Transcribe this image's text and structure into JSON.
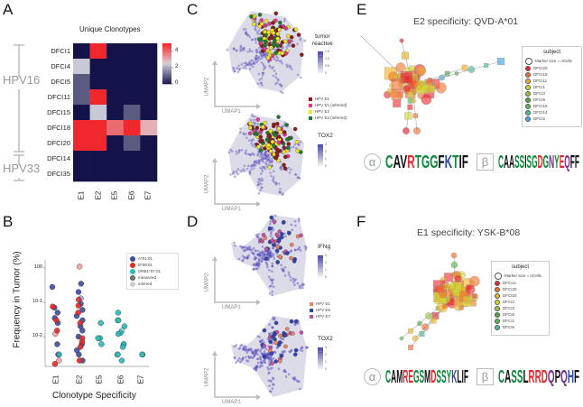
{
  "panels": {
    "A": "A",
    "B": "B",
    "C": "C",
    "D": "D",
    "E": "E",
    "F": "F"
  },
  "colors": {
    "navy": "#13134a",
    "red": "#f0282d",
    "purple": "#5d58b0"
  },
  "chart_data": [
    {
      "type": "heatmap",
      "title": "Unique Clonotypes",
      "rows": [
        "DFCI1",
        "DFCI4",
        "DFCI5",
        "DFCI11",
        "DFCI15",
        "DFCI18",
        "DFCI20",
        "DFCI14",
        "DFCI35"
      ],
      "columns": [
        "E1",
        "E2",
        "E5",
        "E6",
        "E7"
      ],
      "values": [
        [
          0,
          5,
          0,
          0,
          0
        ],
        [
          2.5,
          0,
          0,
          0,
          0
        ],
        [
          1,
          0,
          0,
          0,
          0
        ],
        [
          1,
          5,
          0,
          0,
          0
        ],
        [
          0,
          2.5,
          0,
          1,
          0
        ],
        [
          5,
          5,
          4,
          5,
          3
        ],
        [
          5,
          5,
          0,
          1,
          0
        ],
        [
          0,
          0,
          0,
          0,
          0
        ],
        [
          0,
          0,
          0,
          0,
          0
        ]
      ],
      "colorbar": {
        "range": [
          0,
          5
        ],
        "ticks": [
          "0",
          "2",
          "4"
        ]
      },
      "groups": [
        {
          "label": "HPV16",
          "rows": [
            "DFCI1",
            "DFCI20"
          ]
        },
        {
          "label": "HPV33",
          "rows": [
            "DFCI14",
            "DFCI35"
          ]
        }
      ]
    },
    {
      "type": "scatter",
      "xlabel": "Clonotype Specificity",
      "ylabel": "Frequency in Tumor (%)",
      "categories": [
        "E1",
        "E2",
        "E5",
        "E6",
        "E7"
      ],
      "yscale": "log",
      "ylim": [
        0.0015,
        1.5
      ],
      "yticks": [
        "10^0",
        "10^-1",
        "10^-2"
      ],
      "legend": {
        "placement": "top-right",
        "entries": [
          "A*01:01",
          "B*08:01",
          "DRB1*07:01",
          "measured",
          "inferred"
        ]
      },
      "series": [
        {
          "name": "A*01:01",
          "color": "#3b4aa0",
          "points": [
            [
              "E1",
              0.28
            ],
            [
              "E1",
              0.07
            ],
            [
              "E1",
              0.05
            ],
            [
              "E1",
              0.035
            ],
            [
              "E1",
              0.025
            ],
            [
              "E1",
              0.006
            ],
            [
              "E1",
              0.003
            ],
            [
              "E2",
              0.2
            ],
            [
              "E2",
              0.13
            ],
            [
              "E2",
              0.09
            ],
            [
              "E2",
              0.06
            ],
            [
              "E2",
              0.04
            ],
            [
              "E2",
              0.03
            ],
            [
              "E2",
              0.02
            ],
            [
              "E2",
              0.015
            ],
            [
              "E2",
              0.01
            ],
            [
              "E2",
              0.006
            ],
            [
              "E2",
              0.004
            ],
            [
              "E2",
              0.003
            ],
            [
              "E2",
              0.002
            ],
            [
              "E2",
              0.35
            ]
          ]
        },
        {
          "name": "B*08:01",
          "color": "#e8262c",
          "points": [
            [
              "E1",
              0.075
            ],
            [
              "E1",
              0.03
            ],
            [
              "E1",
              0.012
            ],
            [
              "E1",
              0.002
            ],
            [
              "E1",
              0.0016
            ],
            [
              "E1",
              0.015
            ],
            [
              "E2",
              1.1
            ],
            [
              "E2",
              0.12
            ],
            [
              "E2",
              0.08
            ],
            [
              "E2",
              0.05
            ],
            [
              "E2",
              0.025
            ],
            [
              "E2",
              0.009
            ],
            [
              "E2",
              0.007
            ],
            [
              "E2",
              0.005
            ],
            [
              "E2",
              0.002
            ]
          ]
        },
        {
          "name": "DRB1*07:01",
          "color": "#2ab8b8",
          "points": [
            [
              "E1",
              0.003
            ],
            [
              "E5",
              0.025
            ],
            [
              "E5",
              0.009
            ],
            [
              "E5",
              0.009
            ],
            [
              "E5",
              0.006
            ],
            [
              "E6",
              0.05
            ],
            [
              "E6",
              0.03
            ],
            [
              "E6",
              0.03
            ],
            [
              "E6",
              0.02
            ],
            [
              "E6",
              0.015
            ],
            [
              "E6",
              0.013
            ],
            [
              "E6",
              0.012
            ],
            [
              "E6",
              0.006
            ],
            [
              "E6",
              0.006
            ],
            [
              "E6",
              0.005
            ],
            [
              "E6",
              0.003
            ],
            [
              "E6",
              0.003
            ],
            [
              "E6",
              0.002
            ],
            [
              "E7",
              0.003
            ],
            [
              "E7",
              0.003
            ]
          ]
        }
      ]
    }
  ],
  "panelC": {
    "axis_x": "UMAP1",
    "axis_y": "UMAP2",
    "top_scale": "tumor\nreactive",
    "top_ticks": [
      "1.5",
      "1.0",
      "0.5",
      "0"
    ],
    "bottom_scale": "TOX2",
    "bottom_ticks": [
      "3",
      "2",
      "1",
      "0"
    ],
    "legend": [
      {
        "label": "HPV E1",
        "color": "#8b1a1a"
      },
      {
        "label": "HPV E1 (inferred)",
        "color": "#e0388a"
      },
      {
        "label": "HPV E2",
        "color": "#f2e626"
      },
      {
        "label": "HPV E2 (inferred)",
        "color": "#1e7a2e"
      }
    ]
  },
  "panelD": {
    "axis_x": "UMAP1",
    "axis_y": "UMAP2",
    "top_scale": "IFNg",
    "bottom_scale": "TOX2",
    "ticks": [
      "3",
      "2",
      "1",
      "0"
    ],
    "legend": [
      {
        "label": "HPV E1",
        "color": "#f08060"
      },
      {
        "label": "HPV E6",
        "color": "#2e44b0"
      },
      {
        "label": "HPV E7",
        "color": "#c050a0"
      }
    ]
  },
  "panelE": {
    "title": "E2 specificity: QVD-A*01",
    "legend_title": "subject",
    "marker_note": "Marker size = nCells",
    "subjects": [
      {
        "label": "DFCI20",
        "color": "#e8262c"
      },
      {
        "label": "DFCI18",
        "color": "#f07030"
      },
      {
        "label": "DFCI11",
        "color": "#f0b020"
      },
      {
        "label": "DFCI1",
        "color": "#d0d830"
      },
      {
        "label": "DFCI3",
        "color": "#90c840"
      },
      {
        "label": "DFCI6",
        "color": "#50a840"
      },
      {
        "label": "DFCI15",
        "color": "#60b850"
      },
      {
        "label": "DFCI14",
        "color": "#50b8a0"
      },
      {
        "label": "DFCI2",
        "color": "#40a8e0"
      }
    ],
    "alpha": "α",
    "beta": "β",
    "alpha_logo": "CAVRTGGFKTIF",
    "beta_logo": "CAASSISGDGNYEQFF"
  },
  "panelF": {
    "title": "E1 specificity: YSK-B*08",
    "legend_title": "subject",
    "marker_note": "Marker size = nCells",
    "subjects": [
      {
        "label": "DFCI11",
        "color": "#e8262c"
      },
      {
        "label": "DFCI20",
        "color": "#f07030"
      },
      {
        "label": "DFCI15",
        "color": "#f0b020"
      },
      {
        "label": "DFCI2",
        "color": "#d0d830"
      },
      {
        "label": "DFCI3",
        "color": "#90c840"
      },
      {
        "label": "DFCI6",
        "color": "#50a840"
      },
      {
        "label": "DFCI1",
        "color": "#60b850"
      },
      {
        "label": "DFCI5",
        "color": "#50b8a0"
      }
    ],
    "alpha": "α",
    "beta": "β",
    "alpha_logo": "CAMREGSMDSSYKLIF",
    "beta_logo": "CASSLRRDQPQHF"
  }
}
